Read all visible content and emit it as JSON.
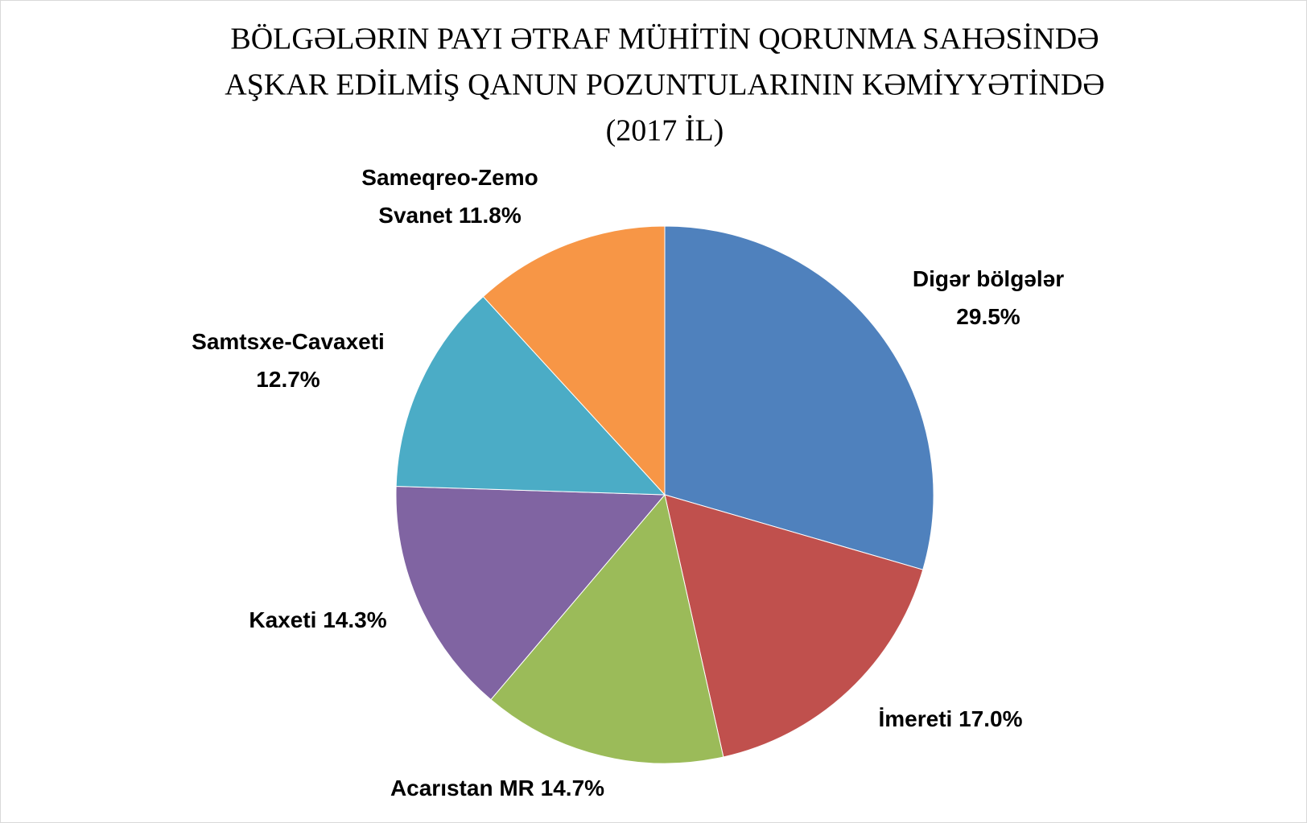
{
  "chart_data": {
    "type": "pie",
    "title": [
      "BÖLGƏLƏRIN PAYI ƏTRAF MÜHİTİN QORUNMA SAHƏSİNDƏ",
      "AŞKAR EDİLMİŞ QANUN POZUNTULARININ KƏMİYYƏTİNDƏ",
      "(2017 İL)"
    ],
    "categories": [
      "Digər bölgələr",
      "İmereti",
      "Acarıstan MR",
      "Kaxeti",
      "Samtsxe-Cavaxeti",
      "Sameqreo-Zemo Svanet"
    ],
    "values": [
      29.5,
      17.0,
      14.7,
      14.3,
      12.7,
      11.8
    ],
    "value_labels": [
      "29.5%",
      "17.0%",
      "14.7%",
      "14.3%",
      "12.7%",
      "11.8%"
    ],
    "colors": [
      "#4f81bd",
      "#c0504d",
      "#9bbb59",
      "#8064a2",
      "#4bacc6",
      "#f79646"
    ]
  }
}
